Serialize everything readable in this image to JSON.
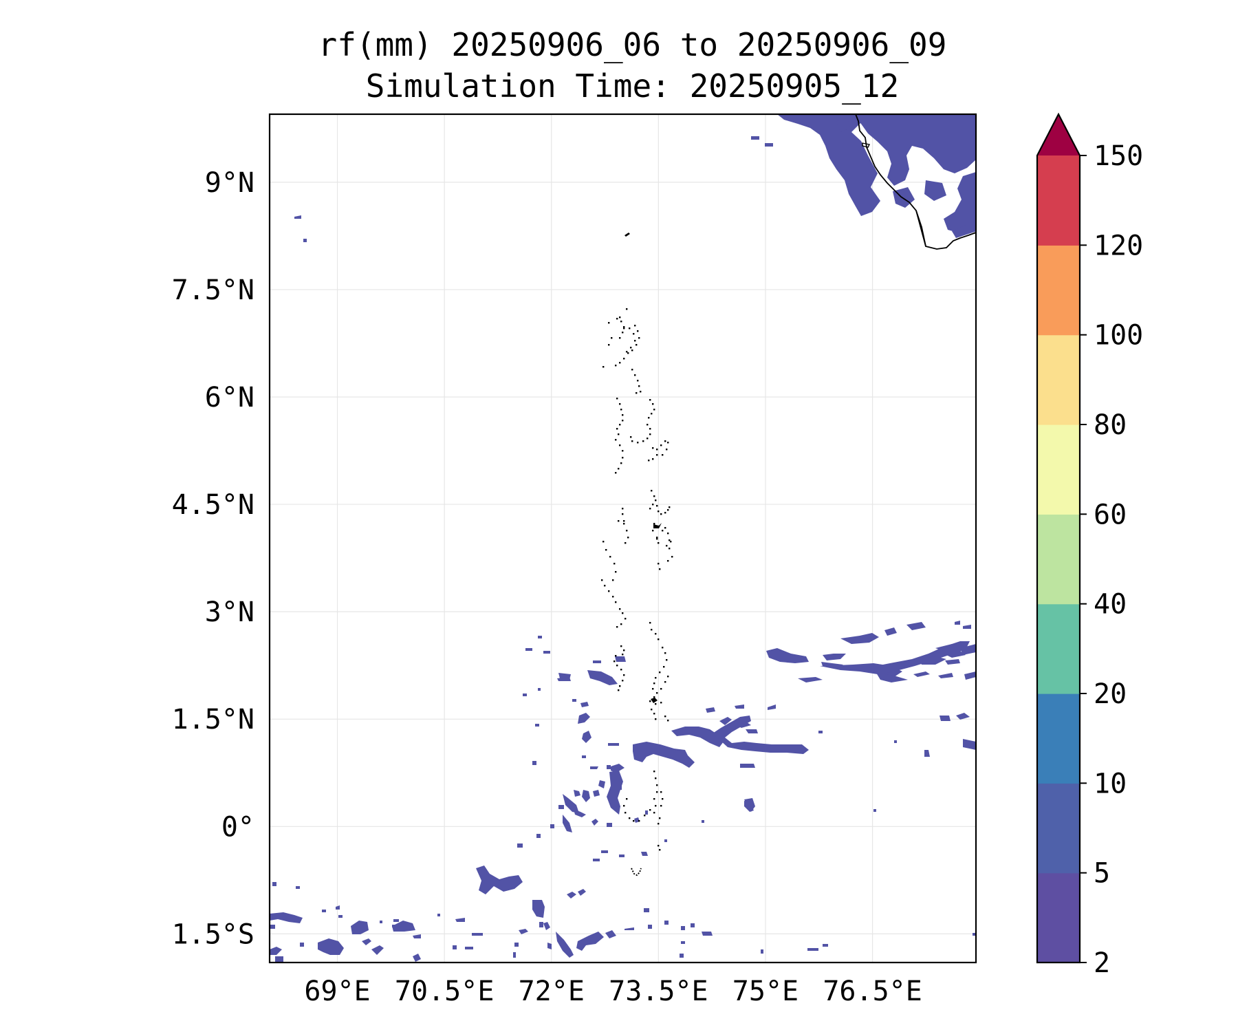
{
  "title_line1": "rf(mm) 20250906_06 to 20250906_09",
  "title_line2": "Simulation Time: 20250905_12",
  "lat_ticks": [
    {
      "value": 9,
      "label": "9°N"
    },
    {
      "value": 7.5,
      "label": "7.5°N"
    },
    {
      "value": 6,
      "label": "6°N"
    },
    {
      "value": 4.5,
      "label": "4.5°N"
    },
    {
      "value": 3,
      "label": "3°N"
    },
    {
      "value": 1.5,
      "label": "1.5°N"
    },
    {
      "value": 0,
      "label": "0°"
    },
    {
      "value": -1.5,
      "label": "1.5°S"
    }
  ],
  "lon_ticks": [
    {
      "value": 69,
      "label": "69°E"
    },
    {
      "value": 70.5,
      "label": "70.5°E"
    },
    {
      "value": 72,
      "label": "72°E"
    },
    {
      "value": 73.5,
      "label": "73.5°E"
    },
    {
      "value": 75,
      "label": "75°E"
    },
    {
      "value": 76.5,
      "label": "76.5°E"
    }
  ],
  "map_extent": {
    "lon": [
      68.05,
      77.95
    ],
    "lat": [
      -1.9,
      9.95
    ]
  },
  "colorbar": {
    "bounds": [
      2,
      5,
      10,
      20,
      40,
      60,
      80,
      100,
      120,
      150
    ],
    "labels": [
      "2",
      "5",
      "10",
      "20",
      "40",
      "60",
      "80",
      "100",
      "120",
      "150"
    ],
    "colors": [
      "#5e4fa2",
      "#4f61aa",
      "#3a7fb8",
      "#66c2a5",
      "#bde4a0",
      "#f3f9ac",
      "#fbdf8d",
      "#f99c5a",
      "#d53e4f"
    ],
    "extend_color": "#9e0142"
  },
  "rain_color": "#5253a6",
  "coast_color": "#000000"
}
